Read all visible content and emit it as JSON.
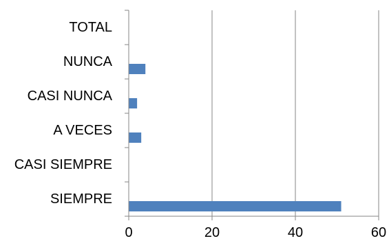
{
  "chart_data": {
    "type": "bar",
    "orientation": "horizontal",
    "title": "",
    "xlabel": "",
    "ylabel": "",
    "categories": [
      "TOTAL",
      "NUNCA",
      "CASI NUNCA",
      "A VECES",
      "CASI SIEMPRE",
      "SIEMPRE"
    ],
    "values": [
      null,
      4,
      2,
      3,
      null,
      51
    ],
    "xlim": [
      0,
      60
    ],
    "xticks": [
      0,
      20,
      40,
      60
    ],
    "grid": "vertical",
    "legend": "none",
    "bar_color": "#4F81BD"
  }
}
